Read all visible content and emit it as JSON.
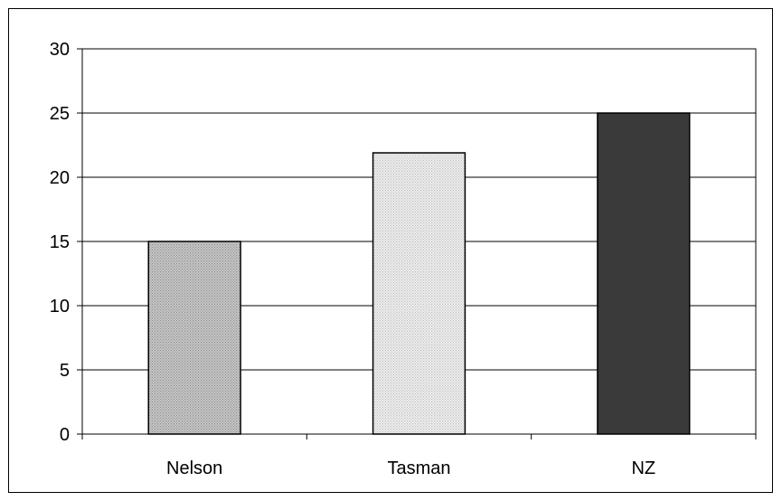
{
  "chart_data": {
    "type": "bar",
    "categories": [
      "Nelson",
      "Tasman",
      "NZ"
    ],
    "values": [
      15,
      21.9,
      25
    ],
    "ylim": [
      0,
      30
    ],
    "yticks": [
      0,
      5,
      10,
      15,
      20,
      25,
      30
    ],
    "grid": true,
    "legend": "none",
    "bar_colors": [
      "#b5b5b5",
      "#e0e0e0",
      "#3a3a3a"
    ]
  }
}
